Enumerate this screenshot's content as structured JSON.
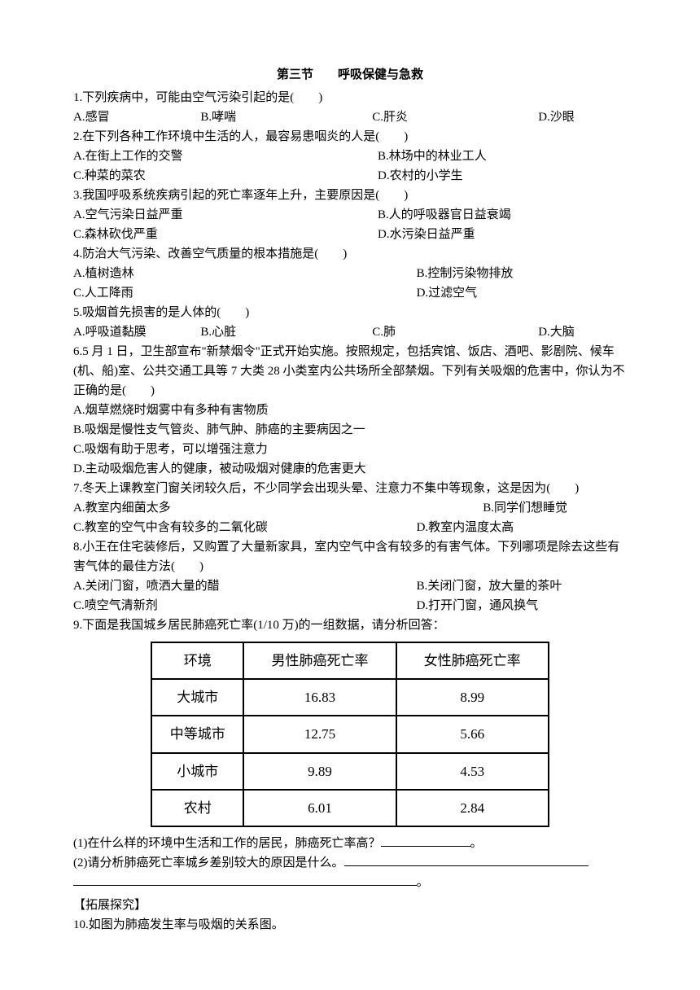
{
  "title": "第三节　　呼吸保健与急救",
  "q1": {
    "stem": "1.下列疾病中，可能由空气污染引起的是(　　)",
    "a": "A.感冒",
    "b": "B.哮喘",
    "c": "C.肝炎",
    "d": "D.沙眼"
  },
  "q2": {
    "stem": "2.在下列各种工作环境中生活的人，最容易患咽炎的人是(　　)",
    "a": "A.在街上工作的交警",
    "b": "B.林场中的林业工人",
    "c": "C.种菜的菜农",
    "d": "D.农村的小学生"
  },
  "q3": {
    "stem": "3.我国呼吸系统疾病引起的死亡率逐年上升，主要原因是(　　)",
    "a": "A.空气污染日益严重",
    "b": "B.人的呼吸器官日益衰竭",
    "c": "C.森林砍伐严重",
    "d": "D.水污染日益严重"
  },
  "q4": {
    "stem": "4.防治大气污染、改善空气质量的根本措施是(　　)",
    "a": "A.植树造林",
    "b": "B.控制污染物排放",
    "c": "C.人工降雨",
    "d": "D.过滤空气"
  },
  "q5": {
    "stem": "5.吸烟首先损害的是人体的(　　)",
    "a": "A.呼吸道黏膜",
    "b": "B.心脏",
    "c": "C.肺",
    "d": "D.大脑"
  },
  "q6": {
    "stem1": "6.5 月 1 日，卫生部宣布\"新禁烟令\"正式开始实施。按照规定，包括宾馆、饭店、酒吧、影剧院、候车",
    "stem2": "(机、船)室、公共交通工具等 7 大类 28 小类室内公共场所全部禁烟。下列有关吸烟的危害中，你认为不",
    "stem3": "正确的是(　　)",
    "a": "A.烟草燃烧时烟雾中有多种有害物质",
    "b": "B.吸烟是慢性支气管炎、肺气肿、肺癌的主要病因之一",
    "c": "C.吸烟有助于思考，可以增强注意力",
    "d": "D.主动吸烟危害人的健康，被动吸烟对健康的危害更大"
  },
  "q7": {
    "stem": "7.冬天上课教室门窗关闭较久后，不少同学会出现头晕、注意力不集中等现象，这是因为(　　)",
    "a": "A.教室内细菌太多",
    "b": "B.同学们想睡觉",
    "c": "C.教室的空气中含有较多的二氧化碳",
    "d": "D.教室内温度太高"
  },
  "q8": {
    "stem1": "8.小王在住宅装修后，又购置了大量新家具，室内空气中含有较多的有害气体。下列哪项是除去这些有",
    "stem2": "害气体的最佳方法(　　)",
    "a": "A.关闭门窗，喷洒大量的醋",
    "b": "B.关闭门窗，放大量的茶叶",
    "c": "C.喷空气清新剂",
    "d": "D.打开门窗，通风换气"
  },
  "q9": {
    "stem": "9.下面是我国城乡居民肺癌死亡率(1/10 万)的一组数据，请分析回答：",
    "table": {
      "headers": [
        "环境",
        "男性肺癌死亡率",
        "女性肺癌死亡率"
      ],
      "rows": [
        [
          "大城市",
          "16.83",
          "8.99"
        ],
        [
          "中等城市",
          "12.75",
          "5.66"
        ],
        [
          "小城市",
          "9.89",
          "4.53"
        ],
        [
          "农村",
          "6.01",
          "2.84"
        ]
      ]
    },
    "sub1": "(1)在什么样的环境中生活和工作的居民，肺癌死亡率高？",
    "sub1_end": "。",
    "sub2": "(2)请分析肺癌死亡率城乡差别较大的原因是什么。",
    "sub2_end": "。"
  },
  "section": "【拓展探究】",
  "q10": "10.如图为肺癌发生率与吸烟的关系图。"
}
